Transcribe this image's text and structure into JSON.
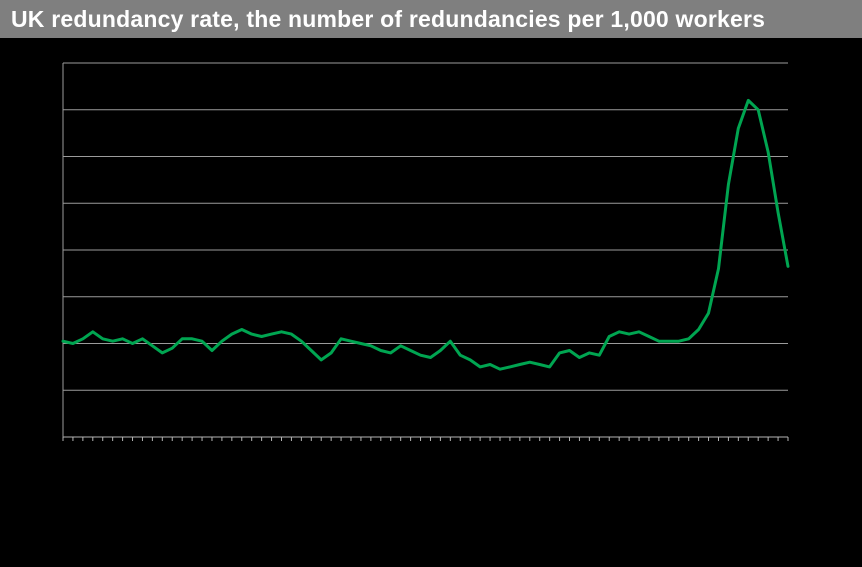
{
  "header": {
    "title": "UK redundancy rate, the number of redundancies per 1,000 workers"
  },
  "colors": {
    "background": "#000000",
    "title_bar_bg": "#7f7f7f",
    "title_text": "#ffffff",
    "line": "#00a551",
    "gridline": "#9b9b9b",
    "axis": "#b5b5b5"
  },
  "chart_data": {
    "type": "line",
    "title": "UK redundancy rate, the number of redundancies per 1,000 workers",
    "xlabel": "",
    "ylabel": "",
    "ylim": [
      0,
      16
    ],
    "ytick_step": 2,
    "grid": "horizontal",
    "legend": "none",
    "x_axis_labels_visible": false,
    "y_axis_labels_visible": false,
    "n_points": 74,
    "series": [
      {
        "name": "Redundancy rate per 1,000 workers",
        "values": [
          4.1,
          4.0,
          4.2,
          4.5,
          4.2,
          4.1,
          4.2,
          4.0,
          4.2,
          3.9,
          3.6,
          3.8,
          4.2,
          4.2,
          4.1,
          3.7,
          4.1,
          4.4,
          4.6,
          4.4,
          4.3,
          4.4,
          4.5,
          4.4,
          4.1,
          3.7,
          3.3,
          3.6,
          4.2,
          4.1,
          4.0,
          3.9,
          3.7,
          3.6,
          3.9,
          3.7,
          3.5,
          3.4,
          3.7,
          4.1,
          3.5,
          3.3,
          3.0,
          3.1,
          2.9,
          3.0,
          3.1,
          3.2,
          3.1,
          3.0,
          3.6,
          3.7,
          3.4,
          3.6,
          3.5,
          4.3,
          4.5,
          4.4,
          4.5,
          4.3,
          4.1,
          4.1,
          4.1,
          4.2,
          4.6,
          5.3,
          7.2,
          10.8,
          13.2,
          14.4,
          14.0,
          12.2,
          9.6,
          7.3
        ]
      }
    ]
  }
}
